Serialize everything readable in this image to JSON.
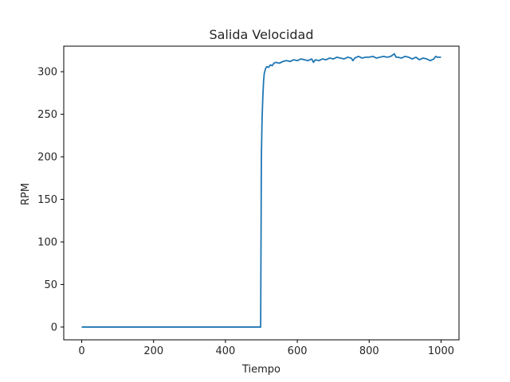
{
  "chart_data": {
    "type": "line",
    "title": "Salida Velocidad",
    "xlabel": "Tiempo",
    "ylabel": "RPM",
    "xlim": [
      -50,
      1050
    ],
    "ylim": [
      -15,
      330
    ],
    "xticks": [
      0,
      200,
      400,
      600,
      800,
      1000
    ],
    "yticks": [
      0,
      50,
      100,
      150,
      200,
      250,
      300
    ],
    "grid": false,
    "legend": "none",
    "series": [
      {
        "color": "#1f77b4",
        "points": [
          [
            0,
            0
          ],
          [
            100,
            0
          ],
          [
            200,
            0
          ],
          [
            300,
            0
          ],
          [
            400,
            0
          ],
          [
            498,
            0
          ],
          [
            499,
            100
          ],
          [
            500,
            200
          ],
          [
            502,
            245
          ],
          [
            504,
            270
          ],
          [
            506,
            288
          ],
          [
            508,
            298
          ],
          [
            512,
            304
          ],
          [
            515,
            306
          ],
          [
            520,
            305
          ],
          [
            525,
            308
          ],
          [
            530,
            307
          ],
          [
            535,
            310
          ],
          [
            540,
            311
          ],
          [
            550,
            310
          ],
          [
            560,
            312
          ],
          [
            570,
            313
          ],
          [
            580,
            312
          ],
          [
            590,
            314
          ],
          [
            600,
            313
          ],
          [
            610,
            315
          ],
          [
            620,
            314
          ],
          [
            630,
            313
          ],
          [
            640,
            315
          ],
          [
            645,
            311
          ],
          [
            650,
            314
          ],
          [
            660,
            313
          ],
          [
            670,
            315
          ],
          [
            680,
            314
          ],
          [
            690,
            316
          ],
          [
            700,
            315
          ],
          [
            710,
            317
          ],
          [
            720,
            316
          ],
          [
            730,
            315
          ],
          [
            740,
            317
          ],
          [
            750,
            316
          ],
          [
            755,
            313
          ],
          [
            760,
            316
          ],
          [
            770,
            318
          ],
          [
            780,
            316
          ],
          [
            790,
            317
          ],
          [
            800,
            317
          ],
          [
            810,
            318
          ],
          [
            820,
            316
          ],
          [
            830,
            317
          ],
          [
            840,
            318
          ],
          [
            850,
            317
          ],
          [
            860,
            318
          ],
          [
            870,
            321
          ],
          [
            875,
            317
          ],
          [
            880,
            317
          ],
          [
            890,
            316
          ],
          [
            900,
            318
          ],
          [
            910,
            317
          ],
          [
            920,
            315
          ],
          [
            930,
            317
          ],
          [
            940,
            314
          ],
          [
            950,
            316
          ],
          [
            960,
            315
          ],
          [
            970,
            313
          ],
          [
            980,
            315
          ],
          [
            985,
            318
          ],
          [
            990,
            317
          ],
          [
            1000,
            317
          ]
        ]
      }
    ]
  }
}
